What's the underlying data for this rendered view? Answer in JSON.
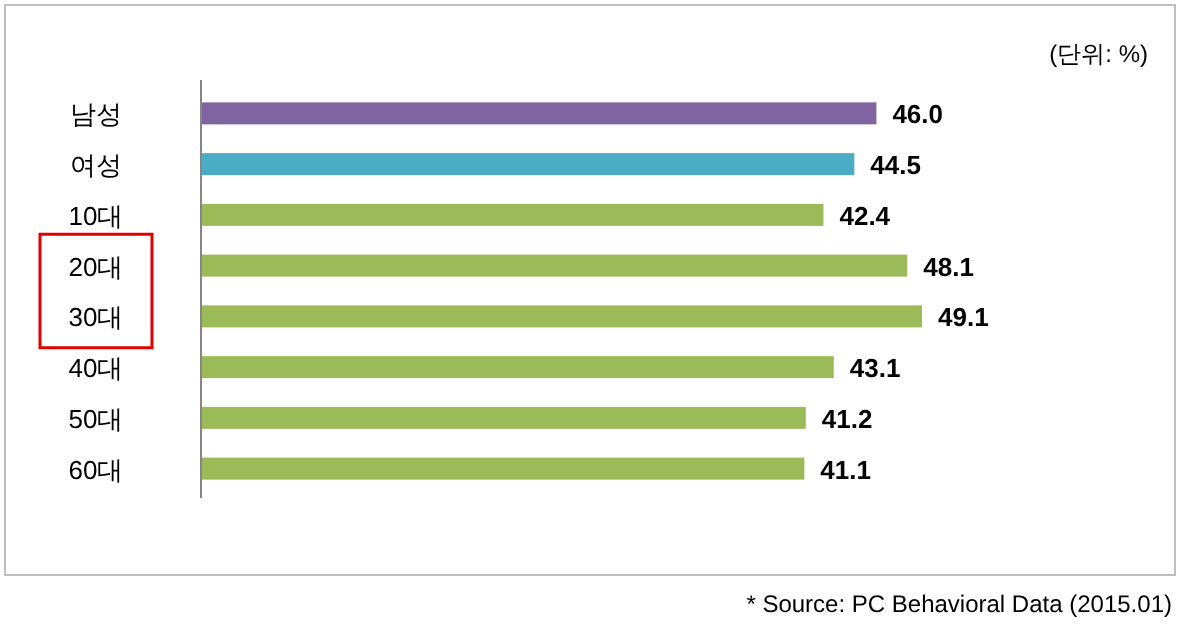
{
  "chart_data": {
    "type": "bar",
    "orientation": "horizontal",
    "categories": [
      "남성",
      "여성",
      "10대",
      "20대",
      "30대",
      "40대",
      "50대",
      "60대"
    ],
    "values": [
      46.0,
      44.5,
      42.4,
      48.1,
      49.1,
      43.1,
      41.2,
      41.1
    ],
    "colors": [
      "#8064a2",
      "#4bacc6",
      "#9bbb59",
      "#9bbb59",
      "#9bbb59",
      "#9bbb59",
      "#9bbb59",
      "#9bbb59"
    ],
    "value_labels": [
      "46.0",
      "44.5",
      "42.4",
      "48.1",
      "49.1",
      "43.1",
      "41.2",
      "41.1"
    ],
    "annotations": [
      "(단위: %)",
      "* Source: PC Behavioral Data (2015.01)"
    ]
  }
}
